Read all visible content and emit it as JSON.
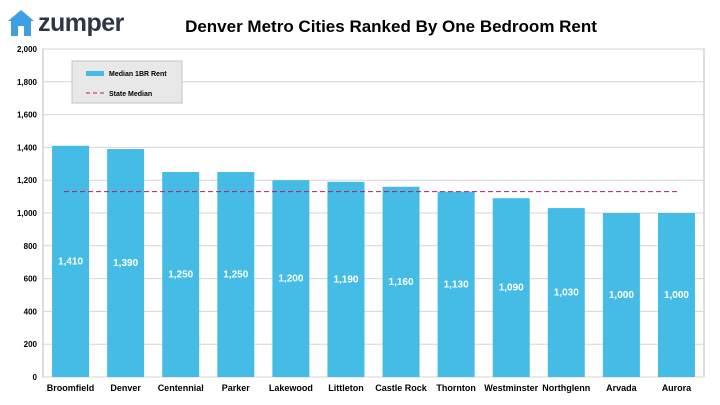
{
  "logo": {
    "text": "zumper",
    "icon": "house-icon",
    "color": "#3e9fe3"
  },
  "chart_data": {
    "type": "bar",
    "title": "Denver Metro Cities Ranked By One Bedroom Rent",
    "categories": [
      "Broomfield",
      "Denver",
      "Centennial",
      "Parker",
      "Lakewood",
      "Littleton",
      "Castle Rock",
      "Thornton",
      "Westminster",
      "Northglenn",
      "Arvada",
      "Aurora"
    ],
    "series": [
      {
        "name": "Median 1BR Rent",
        "values": [
          1410,
          1390,
          1250,
          1250,
          1200,
          1190,
          1160,
          1130,
          1090,
          1030,
          1000,
          1000
        ],
        "color": "#45bce6"
      }
    ],
    "reference_line": {
      "name": "State Median",
      "value": 1130,
      "color": "#c2185b",
      "style": "dashed"
    },
    "data_labels": [
      "1,410",
      "1,390",
      "1,250",
      "1,250",
      "1,200",
      "1,190",
      "1,160",
      "1,130",
      "1,090",
      "1,030",
      "1,000",
      "1,000"
    ],
    "ylim": [
      0,
      2000
    ],
    "yticks": [
      0,
      200,
      400,
      600,
      800,
      1000,
      1200,
      1400,
      1600,
      1800,
      2000
    ],
    "ytick_labels": [
      "0",
      "200",
      "400",
      "600",
      "800",
      "1,000",
      "1,200",
      "1,400",
      "1,600",
      "1,800",
      "2,000"
    ],
    "grid": true,
    "legend": "top-left",
    "xlabel": "",
    "ylabel": ""
  }
}
